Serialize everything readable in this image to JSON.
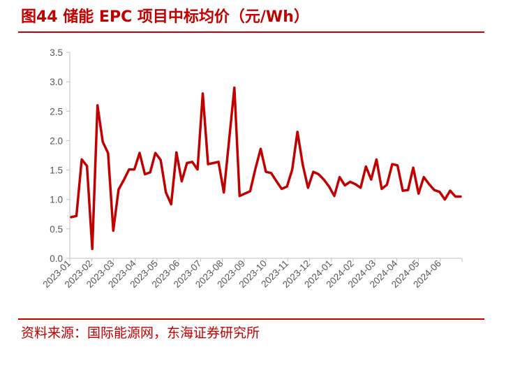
{
  "figure": {
    "title": "图44  储能 EPC 项目中标均价（元/Wh）",
    "source": "资料来源：国际能源网，东海证券研究所"
  },
  "colors": {
    "accent": "#c00000",
    "line": "#c00000",
    "axis": "#bfbfbf",
    "tick_text": "#555555"
  },
  "chart_data": {
    "type": "line",
    "title": "储能 EPC 项目中标均价（元/Wh）",
    "xlabel": "",
    "ylabel": "",
    "ylim": [
      0,
      3.5
    ],
    "y_ticks": [
      "0.0",
      "0.5",
      "1.0",
      "1.5",
      "2.0",
      "2.5",
      "3.0",
      "3.5"
    ],
    "x_tick_labels": [
      "2023-01",
      "2023-02",
      "2023-03",
      "2023-04",
      "2023-05",
      "2023-06",
      "2023-07",
      "2023-08",
      "2023-09",
      "2023-10",
      "2023-11",
      "2023-12",
      "2024-01",
      "2024-02",
      "2024-03",
      "2024-04",
      "2024-05",
      "2024-06"
    ],
    "grid": false,
    "legend": "none",
    "series": [
      {
        "values": [
          0.7,
          0.72,
          1.68,
          1.57,
          0.16,
          2.6,
          1.98,
          1.79,
          0.47,
          1.17,
          1.33,
          1.51,
          1.51,
          1.79,
          1.43,
          1.46,
          1.79,
          1.67,
          1.12,
          0.92,
          1.8,
          1.31,
          1.62,
          1.64,
          1.51,
          2.8,
          1.6,
          1.62,
          1.64,
          1.12,
          2.0,
          2.9,
          1.06,
          1.1,
          1.14,
          1.52,
          1.86,
          1.47,
          1.45,
          1.31,
          1.18,
          1.22,
          1.51,
          2.15,
          1.59,
          1.2,
          1.47,
          1.43,
          1.34,
          1.22,
          1.06,
          1.38,
          1.24,
          1.3,
          1.26,
          1.2,
          1.56,
          1.34,
          1.68,
          1.18,
          1.25,
          1.6,
          1.58,
          1.15,
          1.16,
          1.54,
          1.1,
          1.38,
          1.26,
          1.16,
          1.13,
          1.0,
          1.15,
          1.05,
          1.05
        ]
      }
    ]
  }
}
